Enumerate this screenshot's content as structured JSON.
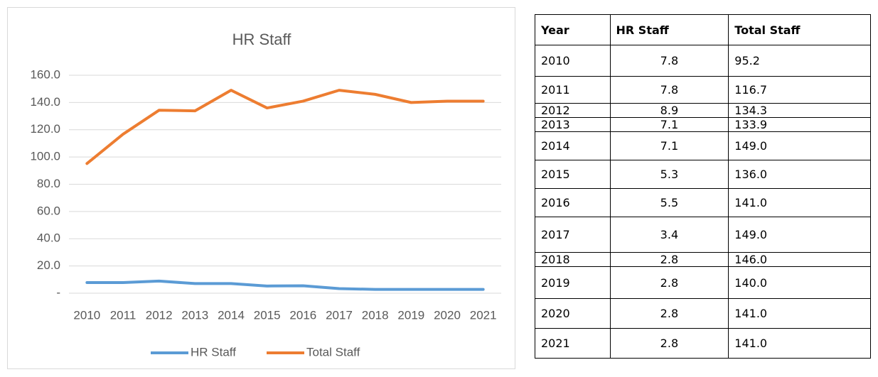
{
  "chart_data": {
    "type": "line",
    "title": "HR Staff",
    "categories": [
      "2010",
      "2011",
      "2012",
      "2013",
      "2014",
      "2015",
      "2016",
      "2017",
      "2018",
      "2019",
      "2020",
      "2021"
    ],
    "series": [
      {
        "name": "HR Staff",
        "color": "#5b9bd5",
        "values": [
          7.8,
          7.8,
          8.9,
          7.1,
          7.1,
          5.3,
          5.5,
          3.4,
          2.8,
          2.8,
          2.8,
          2.8
        ]
      },
      {
        "name": "Total Staff",
        "color": "#ed7d31",
        "values": [
          95.2,
          116.7,
          134.3,
          133.9,
          149.0,
          136.0,
          141.0,
          149.0,
          146.0,
          140.0,
          141.0,
          141.0
        ]
      }
    ],
    "ylim": [
      0,
      160
    ],
    "yticks": [
      {
        "value": 0,
        "label": "-"
      },
      {
        "value": 20,
        "label": "20.0"
      },
      {
        "value": 40,
        "label": "40.0"
      },
      {
        "value": 60,
        "label": "60.0"
      },
      {
        "value": 80,
        "label": "80.0"
      },
      {
        "value": 100,
        "label": "100.0"
      },
      {
        "value": 120,
        "label": "120.0"
      },
      {
        "value": 140,
        "label": "140.0"
      },
      {
        "value": 160,
        "label": "160.0"
      }
    ],
    "grid": true,
    "legend": "bottom"
  },
  "table": {
    "header": [
      "Year",
      "HR Staff",
      "Total Staff"
    ],
    "rows": [
      [
        "2010",
        "7.8",
        "95.2"
      ],
      [
        "2011",
        "7.8",
        "116.7"
      ],
      [
        "2012",
        "8.9",
        "134.3"
      ],
      [
        "2013",
        "7.1",
        "133.9"
      ],
      [
        "2014",
        "7.1",
        "149.0"
      ],
      [
        "2015",
        "5.3",
        "136.0"
      ],
      [
        "2016",
        "5.5",
        "141.0"
      ],
      [
        "2017",
        "3.4",
        "149.0"
      ],
      [
        "2018",
        "2.8",
        "146.0"
      ],
      [
        "2019",
        "2.8",
        "140.0"
      ],
      [
        "2020",
        "2.8",
        "141.0"
      ],
      [
        "2021",
        "2.8",
        "141.0"
      ]
    ]
  }
}
